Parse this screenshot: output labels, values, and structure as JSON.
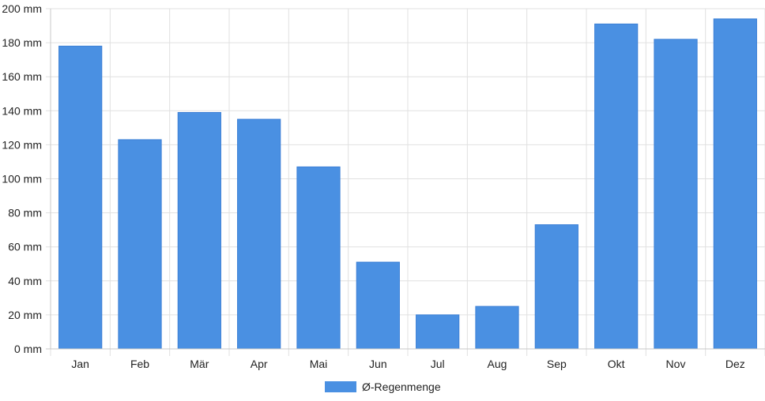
{
  "chart_data": {
    "type": "bar",
    "categories": [
      "Jan",
      "Feb",
      "Mär",
      "Apr",
      "Mai",
      "Jun",
      "Jul",
      "Aug",
      "Sep",
      "Okt",
      "Nov",
      "Dez"
    ],
    "series": [
      {
        "name": "Ø-Regenmenge",
        "color": "#4a90e2",
        "values": [
          178,
          123,
          139,
          135,
          107,
          51,
          20,
          25,
          73,
          191,
          182,
          194
        ]
      }
    ],
    "y_ticks": [
      "0 mm",
      "20 mm",
      "40 mm",
      "60 mm",
      "80 mm",
      "100 mm",
      "120 mm",
      "140 mm",
      "160 mm",
      "180 mm",
      "200 mm"
    ],
    "ylim": [
      0,
      200
    ],
    "y_unit": "mm",
    "grid": true,
    "legend_position": "bottom-center",
    "colors": {
      "grid": "#e0e0e0",
      "axis": "#c8c8c8",
      "text": "#222222"
    }
  }
}
